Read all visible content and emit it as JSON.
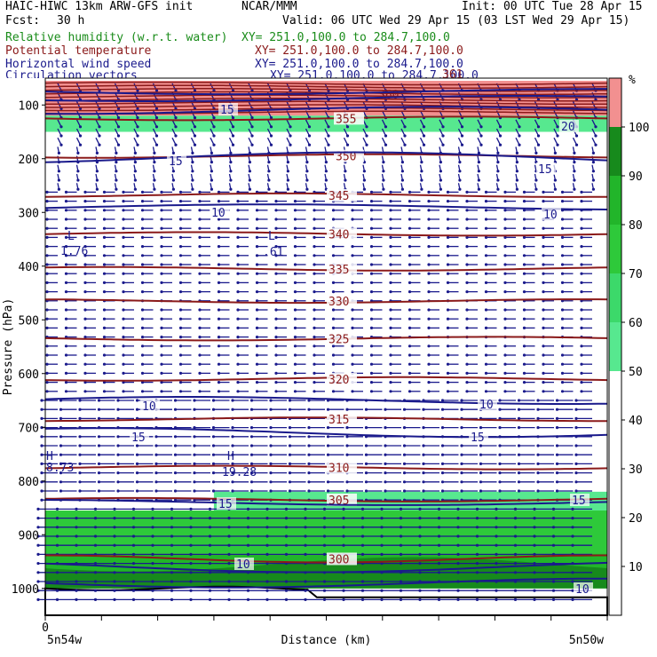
{
  "header": {
    "model_line": "HAIC-HIWC 13km ARW-GFS init",
    "org": "NCAR/MMM",
    "init": "Init: 00 UTC Tue 28 Apr 15",
    "fcst_label": "Fcst:",
    "fcst_value": "30 h",
    "valid": "Valid: 06 UTC Wed 29 Apr 15 (03 LST Wed 29 Apr 15)"
  },
  "fields": [
    {
      "name": "Relative humidity (w.r.t. water)",
      "xy": "XY= 251.0,100.0 to 284.7,100.0",
      "color": "#1a8c1a"
    },
    {
      "name": "Potential temperature",
      "xy": "XY= 251.0,100.0 to 284.7,100.0",
      "color": "#8b1a1a"
    },
    {
      "name": "Horizontal wind speed",
      "xy": "XY= 251.0,100.0 to 284.7,100.0",
      "color": "#1a1a8c"
    },
    {
      "name": "Circulation vectors",
      "xy": "XY= 251.0,100.0 to 284.7,100.0",
      "color": "#1a1a8c"
    }
  ],
  "chart_data": {
    "type": "heatmap",
    "xlabel": "Distance (km)",
    "ylabel": "Pressure (hPa)",
    "x_tick_labels": [
      "0"
    ],
    "x_end_labels": [
      "5n54w",
      "5n50w"
    ],
    "y_ticks": [
      100,
      200,
      300,
      400,
      500,
      600,
      700,
      800,
      900,
      1000
    ],
    "ylim": [
      50,
      1050
    ],
    "colorbar": {
      "unit": "%",
      "ticks": [
        10,
        20,
        30,
        40,
        50,
        60,
        70,
        80,
        90,
        100
      ],
      "bins": [
        {
          "from": 50,
          "to": 60,
          "color": "#57e88f"
        },
        {
          "from": 60,
          "to": 70,
          "color": "#3cd96a"
        },
        {
          "from": 70,
          "to": 80,
          "color": "#2ec93a"
        },
        {
          "from": 80,
          "to": 90,
          "color": "#22b52a"
        },
        {
          "from": 90,
          "to": 100,
          "color": "#178a1c"
        },
        {
          "from": 100,
          "to": 110,
          "color": "#f29090"
        }
      ]
    },
    "rh_layers": [
      {
        "p_top": 55,
        "p_bot": 120,
        "rh": 105,
        "note": "saturated"
      },
      {
        "p_top": 120,
        "p_bot": 150,
        "rh": 55
      },
      {
        "p_top": 820,
        "p_bot": 855,
        "rh": 55
      },
      {
        "p_top": 855,
        "p_bot": 935,
        "rh": 75
      },
      {
        "p_top": 935,
        "p_bot": 1000,
        "rh": 85
      }
    ],
    "theta_contours": [
      {
        "label": "355",
        "p": 125
      },
      {
        "label": "350",
        "p": 195
      },
      {
        "label": "345",
        "p": 268
      },
      {
        "label": "340",
        "p": 340
      },
      {
        "label": "335",
        "p": 405
      },
      {
        "label": "330",
        "p": 465
      },
      {
        "label": "325",
        "p": 535
      },
      {
        "label": "320",
        "p": 610
      },
      {
        "label": "315",
        "p": 685
      },
      {
        "label": "310",
        "p": 775
      },
      {
        "label": "305",
        "p": 835
      },
      {
        "label": "300",
        "p": 945
      }
    ],
    "theta_extra_labels": [
      "360",
      "361"
    ],
    "wind_labels": [
      "15",
      "20",
      "15",
      "15",
      "10",
      "10",
      "10",
      "10",
      "15",
      "15",
      "15",
      "15",
      "10",
      "10"
    ],
    "extrema": [
      {
        "type": "L",
        "value": "1.76"
      },
      {
        "type": "L",
        "value": ".61"
      },
      {
        "type": "H",
        "value": "8.73"
      },
      {
        "type": "H",
        "value": "19.28"
      }
    ]
  }
}
